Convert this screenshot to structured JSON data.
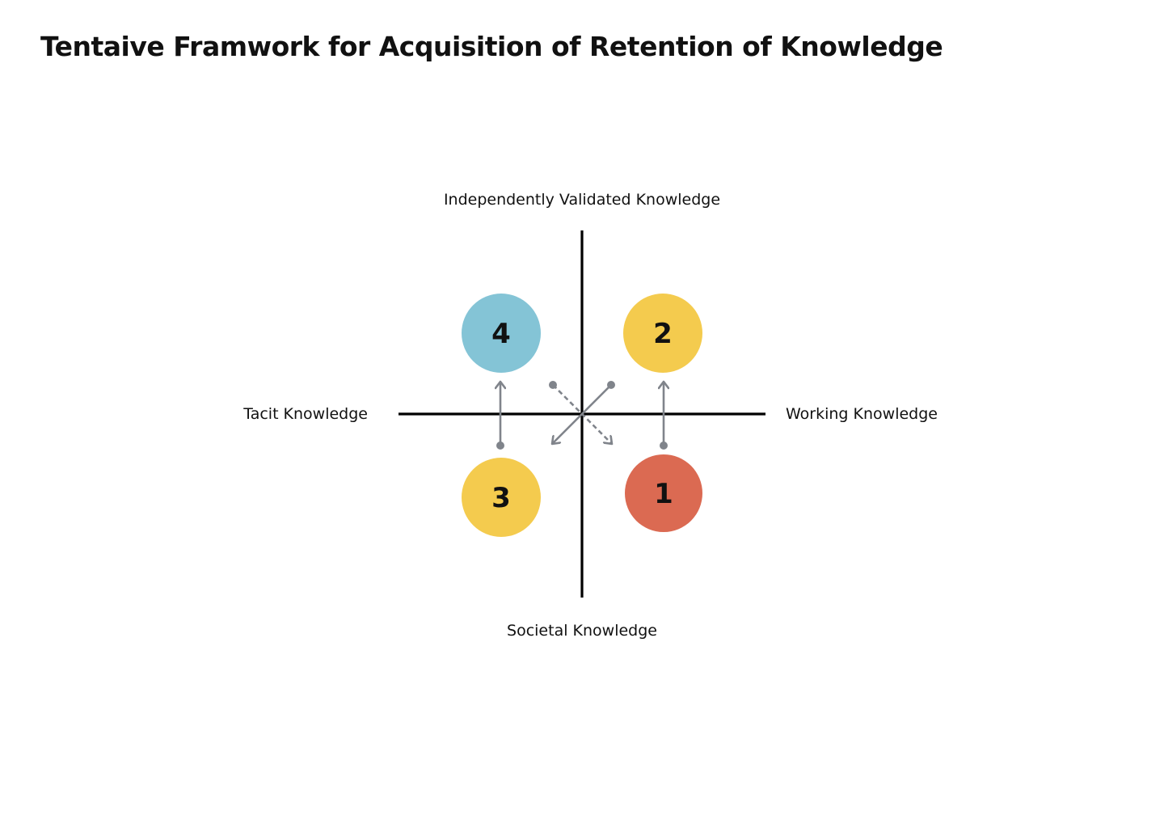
{
  "title": "Tentaive Framwork for Acquisition of Retention of Knowledge",
  "axes": {
    "top": "Independently Validated Knowledge",
    "bottom": "Societal Knowledge",
    "left": "Tacit Knowledge",
    "right": "Working Knowledge"
  },
  "nodes": [
    {
      "label": "1",
      "quadrant": "bottom-right",
      "color": "#DB6A52"
    },
    {
      "label": "2",
      "quadrant": "top-right",
      "color": "#F4CB4E"
    },
    {
      "label": "3",
      "quadrant": "bottom-left",
      "color": "#F4CB4E"
    },
    {
      "label": "4",
      "quadrant": "top-left",
      "color": "#84C4D6"
    }
  ],
  "colors": {
    "axis": "#000000",
    "arrow": "#80848B"
  }
}
